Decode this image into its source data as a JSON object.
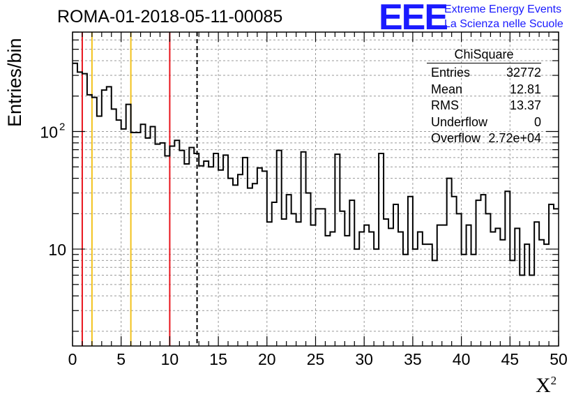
{
  "title": "ROMA-01-2018-05-11-00085",
  "logo": {
    "mark": "EEE",
    "line1": "Extreme Energy Events",
    "line2": "La Scienza nelle Scuole",
    "color": "#1a1aff"
  },
  "stats": {
    "title": "ChiSquare",
    "rows": [
      {
        "label": "Entries",
        "value": "32772"
      },
      {
        "label": "Mean",
        "value": "12.81"
      },
      {
        "label": "RMS",
        "value": "13.37"
      },
      {
        "label": "Underflow",
        "value": "0"
      },
      {
        "label": "Overflow",
        "value": "2.72e+04"
      }
    ]
  },
  "chart_data": {
    "type": "histogram",
    "xlabel": "X",
    "xlabel_superscript": "2",
    "ylabel": "Entries/bin",
    "xlim": [
      0,
      50
    ],
    "ylim": [
      1.5,
      700
    ],
    "yscale": "log",
    "grid": true,
    "bin_width": 0.5,
    "x_ticks": [
      0,
      5,
      10,
      15,
      20,
      25,
      30,
      35,
      40,
      45,
      50
    ],
    "y_ticks": [
      {
        "value": 10,
        "label": "10"
      },
      {
        "value": 100,
        "label": "10",
        "sup": "2"
      }
    ],
    "values": [
      380,
      320,
      310,
      205,
      195,
      135,
      225,
      240,
      155,
      125,
      105,
      170,
      98,
      98,
      115,
      88,
      110,
      78,
      80,
      62,
      75,
      84,
      69,
      53,
      73,
      65,
      51,
      56,
      50,
      65,
      47,
      63,
      40,
      35,
      43,
      60,
      33,
      36,
      49,
      46,
      17,
      25,
      69,
      18,
      29,
      20,
      17,
      67,
      30,
      16,
      22,
      22,
      13,
      14,
      64,
      21,
      13,
      26,
      10,
      14,
      16,
      14,
      10,
      65,
      18,
      15,
      24,
      14,
      9,
      28,
      10,
      14,
      11,
      11,
      8,
      16,
      16,
      40,
      28,
      20,
      9,
      16,
      9,
      26,
      29,
      20,
      14,
      15,
      12,
      31,
      8,
      15,
      6,
      11,
      6,
      17,
      12,
      11,
      24,
      22
    ],
    "line_color": "#000000",
    "vertical_lines": [
      {
        "x": 1,
        "color": "#e8141c",
        "style": "solid"
      },
      {
        "x": 2,
        "color": "#f2c21c",
        "style": "solid"
      },
      {
        "x": 6,
        "color": "#f2c21c",
        "style": "solid"
      },
      {
        "x": 10,
        "color": "#e8141c",
        "style": "solid"
      },
      {
        "x": 12.81,
        "color": "#000000",
        "style": "dashed"
      }
    ]
  }
}
